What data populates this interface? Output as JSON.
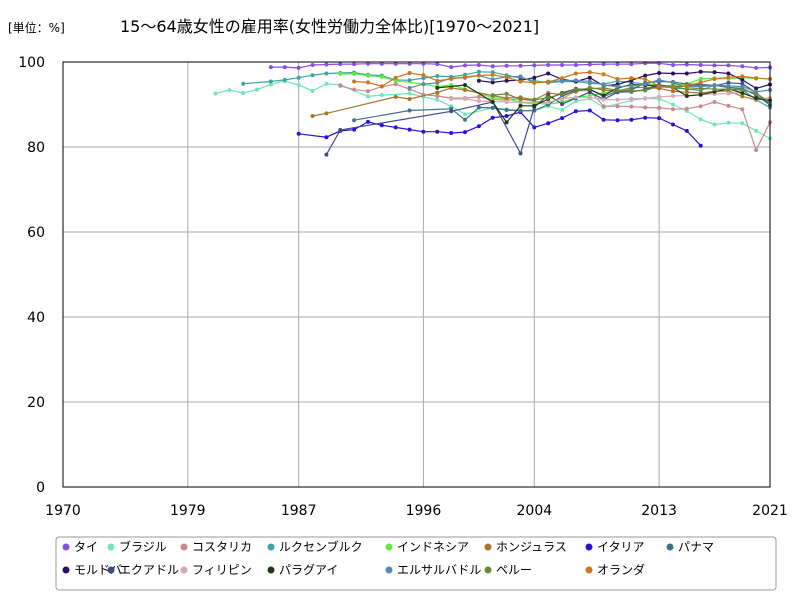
{
  "chart_data": {
    "type": "line",
    "title": "15〜64歳女性の雇用率(女性労働力全体比)[1970〜2021]",
    "unit_label": "[単位：%]",
    "xlabel": "",
    "ylabel": "",
    "xlim": [
      1970,
      2021
    ],
    "ylim": [
      0,
      100
    ],
    "x_ticks": [
      "1970",
      "1979",
      "1987",
      "1996",
      "2004",
      "2013",
      "2021"
    ],
    "y_ticks": [
      "0",
      "20",
      "40",
      "60",
      "80",
      "100"
    ],
    "grid": true,
    "legend_position": "bottom",
    "series": [
      {
        "name": "タイ",
        "color": "#8a4de8",
        "x": [
          1985,
          1986,
          1987,
          1988,
          1989,
          1990,
          1991,
          1992,
          1993,
          1994,
          1995,
          1996,
          1997,
          1998,
          1999,
          2000,
          2001,
          2002,
          2003,
          2004,
          2005,
          2006,
          2007,
          2008,
          2009,
          2010,
          2011,
          2012,
          2013,
          2014,
          2015,
          2016,
          2017,
          2018,
          2019,
          2020,
          2021
        ],
        "y": [
          98.8,
          98.8,
          98.6,
          99.3,
          99.4,
          99.5,
          99.5,
          99.6,
          99.6,
          99.6,
          99.6,
          99.6,
          99.5,
          98.8,
          99.2,
          99.3,
          99.0,
          99.1,
          99.1,
          99.2,
          99.3,
          99.3,
          99.3,
          99.4,
          99.5,
          99.5,
          99.5,
          99.7,
          99.7,
          99.3,
          99.4,
          99.3,
          99.2,
          99.2,
          99.0,
          98.6,
          98.7
        ]
      },
      {
        "name": "ブラジル",
        "color": "#6ee8b4",
        "x": [
          1981,
          1982,
          1983,
          1984,
          1985,
          1986,
          1987,
          1988,
          1989,
          1990,
          1992,
          1993,
          1995,
          1996,
          1997,
          1998,
          1999,
          2001,
          2002,
          2003,
          2004,
          2005,
          2006,
          2007,
          2008,
          2009,
          2011,
          2012,
          2013,
          2014,
          2015,
          2016,
          2017,
          2018,
          2019,
          2020,
          2021
        ],
        "y": [
          92.6,
          93.4,
          92.7,
          93.5,
          94.7,
          95.5,
          94.6,
          93.2,
          94.9,
          94.6,
          91.9,
          92.2,
          92.6,
          91.8,
          91.1,
          89.6,
          87.7,
          89.2,
          88.9,
          88.6,
          88.5,
          89.6,
          88.7,
          90.8,
          91.4,
          89.3,
          91.0,
          91.5,
          91.3,
          90.0,
          88.5,
          86.5,
          85.3,
          85.7,
          85.6,
          83.8,
          82.0
        ]
      },
      {
        "name": "コスタリカ",
        "color": "#c98a8a",
        "x": [
          1990,
          1991,
          1992,
          1993,
          1994,
          1995,
          1996,
          1997,
          1998,
          1999,
          2000,
          2001,
          2002,
          2003,
          2004,
          2005,
          2006,
          2007,
          2008,
          2009,
          2010,
          2011,
          2012,
          2013,
          2014,
          2015,
          2016,
          2017,
          2018,
          2019,
          2020,
          2021
        ],
        "y": [
          94.4,
          93.5,
          93.1,
          94.2,
          94.8,
          93.6,
          92.3,
          92.0,
          91.5,
          91.5,
          91.8,
          91.2,
          91.0,
          91.4,
          90.7,
          90.4,
          91.3,
          93.2,
          93.3,
          89.6,
          89.6,
          89.5,
          89.3,
          89.2,
          88.9,
          89.0,
          89.6,
          90.6,
          89.7,
          88.9,
          79.3,
          85.8
        ]
      },
      {
        "name": "ルクセンブルク",
        "color": "#3da4a4",
        "x": [
          1983,
          1985,
          1986,
          1987,
          1988,
          1989,
          1990,
          1991,
          1992,
          1993,
          1994,
          1995,
          1996,
          1997,
          1998,
          1999,
          2000,
          2001,
          2002,
          2003,
          2004,
          2005,
          2006,
          2007,
          2008,
          2009,
          2010,
          2011,
          2012,
          2013,
          2014,
          2015,
          2016,
          2017,
          2018,
          2019,
          2020,
          2021
        ],
        "y": [
          94.9,
          95.4,
          95.8,
          96.3,
          96.9,
          97.3,
          97.4,
          97.5,
          97.0,
          96.8,
          95.8,
          95.7,
          96.2,
          96.7,
          96.5,
          97.0,
          97.7,
          97.6,
          96.9,
          96.2,
          95.6,
          95.1,
          95.4,
          95.4,
          95.0,
          94.8,
          95.5,
          95.2,
          94.8,
          94.5,
          93.9,
          93.6,
          93.3,
          94.6,
          94.1,
          93.5,
          91.1,
          89.3
        ]
      },
      {
        "name": "インドネシア",
        "color": "#5ced3a",
        "x": [
          1990,
          1991,
          1992,
          1993,
          1994,
          1996,
          1997,
          1998,
          1999,
          2001,
          2002,
          2003,
          2004,
          2005,
          2006,
          2007,
          2008,
          2009,
          2010,
          2011,
          2012,
          2013,
          2014,
          2015,
          2016,
          2017,
          2018,
          2019,
          2020
        ],
        "y": [
          97.2,
          97.2,
          96.8,
          96.5,
          95.6,
          94.8,
          94.2,
          94.6,
          93.6,
          91.6,
          91.3,
          90.6,
          90.4,
          90.0,
          90.6,
          91.6,
          92.1,
          92.7,
          93.3,
          93.8,
          95.1,
          94.0,
          94.6,
          94.8,
          96.0,
          96.2,
          96.1,
          96.3,
          96.1
        ]
      },
      {
        "name": "ホンジュラス",
        "color": "#a8762c",
        "x": [
          1988,
          1989,
          1994,
          1995,
          1997,
          1998,
          1999,
          2001,
          2002,
          2003,
          2004,
          2005,
          2006,
          2007,
          2008,
          2009,
          2010,
          2011,
          2012,
          2013,
          2014,
          2015,
          2016,
          2017,
          2018,
          2019,
          2020,
          2021
        ],
        "y": [
          87.3,
          87.9,
          91.8,
          91.3,
          92.8,
          93.9,
          93.4,
          92.1,
          91.5,
          91.7,
          91.1,
          92.7,
          92.3,
          93.0,
          94.0,
          93.4,
          93.1,
          94.0,
          94.0,
          93.8,
          93.1,
          92.9,
          92.7,
          93.1,
          93.2,
          91.9,
          91.1,
          91.4
        ]
      },
      {
        "name": "イタリア",
        "color": "#2d10d6",
        "x": [
          1987,
          1989,
          1990,
          1991,
          1992,
          1993,
          1994,
          1995,
          1996,
          1997,
          1998,
          1999,
          2000,
          2001,
          2002,
          2003,
          2004,
          2005,
          2006,
          2007,
          2008,
          2009,
          2010,
          2011,
          2012,
          2013,
          2014,
          2015,
          2016,
          2017
        ],
        "y": [
          83.1,
          82.3,
          83.8,
          84.1,
          85.9,
          85.1,
          84.6,
          84.1,
          83.6,
          83.6,
          83.3,
          83.5,
          84.9,
          86.9,
          87.3,
          88.2,
          84.6,
          85.6,
          86.8,
          88.4,
          88.6,
          86.4,
          86.3,
          86.4,
          86.9,
          86.8,
          85.3,
          83.8,
          80.3,
          null
        ]
      },
      {
        "name": "パナマ",
        "color": "#40708a",
        "x": [
          1991,
          1995,
          1998,
          1999,
          2000,
          2001,
          2002,
          2003,
          2004,
          2005,
          2006,
          2007,
          2008,
          2009,
          2010,
          2011,
          2012,
          2013,
          2014,
          2015,
          2016,
          2017,
          2018,
          2019,
          2020,
          2021
        ],
        "y": [
          86.3,
          88.6,
          89.0,
          86.4,
          89.3,
          89.2,
          88.7,
          88.5,
          88.6,
          90.0,
          91.9,
          93.4,
          93.6,
          91.9,
          93.1,
          93.4,
          95.1,
          95.4,
          95.3,
          94.8,
          94.7,
          94.5,
          94.0,
          93.8,
          92.2,
          89.9
        ]
      },
      {
        "name": "モルドバ",
        "color": "#2a0f5e",
        "x": [
          2000,
          2001,
          2002,
          2003,
          2004,
          2005,
          2006,
          2007,
          2008,
          2009,
          2010,
          2011,
          2012,
          2013,
          2014,
          2015,
          2016,
          2017,
          2018,
          2019,
          2020,
          2021
        ],
        "y": [
          95.6,
          95.2,
          95.6,
          95.7,
          96.3,
          97.3,
          95.9,
          95.4,
          96.3,
          94.4,
          94.7,
          95.7,
          96.8,
          97.4,
          97.3,
          97.3,
          97.7,
          97.6,
          97.3,
          95.8,
          93.8,
          94.7
        ]
      },
      {
        "name": "エクアドル",
        "color": "#3d4d8a",
        "x": [
          1989,
          1990,
          1998,
          2001,
          2003,
          2004,
          2005,
          2006,
          2007,
          2008,
          2009,
          2010,
          2011,
          2012,
          2013,
          2014,
          2015,
          2016,
          2017,
          2018,
          2019,
          2020,
          2021
        ],
        "y": [
          78.2,
          84.0,
          88.4,
          90.6,
          78.5,
          89.4,
          92.2,
          90.1,
          91.5,
          92.9,
          91.2,
          92.9,
          93.0,
          93.5,
          94.6,
          94.2,
          94.4,
          94.4,
          94.4,
          95.1,
          94.9,
          92.8,
          89.9
        ]
      },
      {
        "name": "フィリピン",
        "color": "#d6a8b8",
        "x": [
          1998,
          1999,
          2000,
          2001,
          2002,
          2003,
          2004,
          2005,
          2006,
          2007,
          2008,
          2009,
          2010,
          2011,
          2012,
          2013,
          2014,
          2015,
          2016,
          2017,
          2018,
          2019,
          2020,
          2021
        ],
        "y": [
          91.3,
          91.3,
          90.8,
          90.7,
          90.6,
          90.5,
          90.1,
          90.5,
          91.4,
          91.7,
          91.6,
          91.2,
          91.1,
          91.4,
          91.4,
          91.8,
          92.0,
          92.1,
          92.3,
          92.5,
          92.6,
          92.8,
          91.4,
          91.5
        ]
      },
      {
        "name": "パラグアイ",
        "color": "#1e3a12",
        "x": [
          1997,
          1999,
          2001,
          2002,
          2003,
          2004,
          2005,
          2006,
          2007,
          2008,
          2009,
          2010,
          2011,
          2012,
          2013,
          2014,
          2015,
          2016,
          2017,
          2018,
          2019,
          2020,
          2021
        ],
        "y": [
          93.9,
          94.6,
          90.6,
          85.8,
          89.7,
          89.7,
          91.3,
          92.7,
          93.7,
          93.5,
          92.1,
          93.9,
          94.7,
          94.6,
          94.2,
          94.0,
          92.0,
          92.3,
          93.0,
          93.7,
          92.7,
          91.5,
          90.9
        ]
      },
      {
        "name": "エルサルバドル",
        "color": "#5a8ab4",
        "x": [
          1995,
          1996,
          1997,
          1998,
          1999,
          2000,
          2001,
          2002,
          2003,
          2004,
          2005,
          2006,
          2007,
          2008,
          2009,
          2010,
          2011,
          2012,
          2013,
          2014,
          2015,
          2016,
          2017,
          2018,
          2019,
          2020,
          2021
        ],
        "y": [
          93.9,
          94.8,
          95.1,
          96.2,
          96.3,
          96.8,
          95.9,
          96.5,
          96.6,
          95.1,
          95.4,
          95.6,
          95.7,
          95.4,
          94.6,
          94.2,
          94.4,
          94.8,
          95.8,
          95.1,
          94.1,
          94.2,
          94.5,
          94.4,
          94.2,
          93.0,
          93.4
        ]
      },
      {
        "name": "ペルー",
        "color": "#6a8a3a",
        "x": [
          2001,
          2002,
          2003,
          2004,
          2005,
          2006,
          2007,
          2008,
          2009,
          2010,
          2011,
          2012,
          2013,
          2014,
          2015,
          2016,
          2017,
          2018,
          2019,
          2020,
          2021
        ],
        "y": [
          92.2,
          92.5,
          91.2,
          91.1,
          91.6,
          92.5,
          93.6,
          93.7,
          93.9,
          93.3,
          93.2,
          93.3,
          94.3,
          94.2,
          93.6,
          93.8,
          93.6,
          93.6,
          93.4,
          92.7,
          90.4
        ]
      },
      {
        "name": "オランダ",
        "color": "#c8781c",
        "x": [
          1991,
          1992,
          1993,
          1994,
          1995,
          1996,
          1997,
          1998,
          1999,
          2000,
          2001,
          2002,
          2003,
          2004,
          2005,
          2006,
          2007,
          2008,
          2009,
          2010,
          2011,
          2012,
          2013,
          2014,
          2015,
          2016,
          2017,
          2018,
          2019,
          2020,
          2021
        ],
        "y": [
          95.4,
          95.2,
          94.3,
          96.3,
          97.4,
          96.9,
          95.6,
          96.0,
          96.5,
          96.8,
          97.0,
          96.4,
          95.4,
          95.1,
          95.3,
          96.2,
          97.3,
          97.6,
          97.1,
          96.0,
          96.2,
          96.0,
          94.3,
          93.9,
          94.4,
          95.2,
          96.0,
          96.4,
          96.6,
          96.2,
          96.0
        ]
      }
    ]
  }
}
